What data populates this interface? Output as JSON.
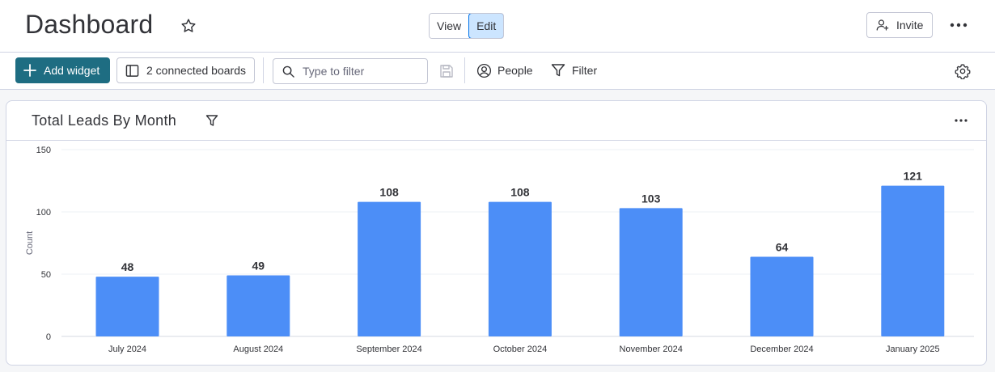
{
  "header": {
    "title": "Dashboard",
    "view_label": "View",
    "edit_label": "Edit",
    "active_mode": "Edit",
    "invite_label": "Invite"
  },
  "toolbar": {
    "add_widget_label": "Add widget",
    "connected_boards_label": "2 connected boards",
    "filter_placeholder": "Type to filter",
    "people_label": "People",
    "filter_label": "Filter"
  },
  "widget": {
    "title": "Total Leads By Month"
  },
  "colors": {
    "accent": "#1e6d82",
    "bar": "#4c8ef7",
    "toggle_active": "#cce5ff"
  },
  "chart_data": {
    "type": "bar",
    "categories": [
      "July 2024",
      "August 2024",
      "September 2024",
      "October 2024",
      "November 2024",
      "December 2024",
      "January 2025"
    ],
    "values": [
      48,
      49,
      108,
      108,
      103,
      64,
      121
    ],
    "ylabel": "Count",
    "xlabel": "",
    "ylim": [
      0,
      150
    ],
    "yticks": [
      0,
      50,
      100,
      150
    ],
    "grid": true,
    "data_labels": true
  }
}
